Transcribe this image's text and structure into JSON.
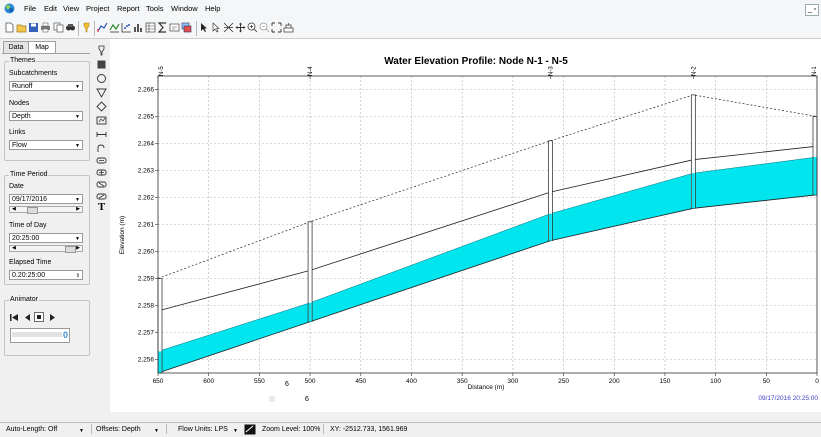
{
  "menubar": {
    "items": [
      "File",
      "Edit",
      "View",
      "Project",
      "Report",
      "Tools",
      "Window",
      "Help"
    ],
    "restore_glyph": "_ ▫"
  },
  "toolbar": {
    "icons": [
      "new-file-icon",
      "open-folder-icon",
      "save-icon",
      "print-icon",
      "copy-icon",
      "find-icon",
      "query-icon",
      "profile-plot-icon",
      "time-series-icon",
      "scatter-icon",
      "histogram-icon",
      "table-icon",
      "statistics-icon",
      "options-icon",
      "stack-icon",
      "select-icon",
      "vertex-icon",
      "full-extent-icon",
      "pan-icon",
      "zoom-in-icon",
      "zoom-out-icon",
      "full-view-icon",
      "legend-icon"
    ]
  },
  "left_panel": {
    "tabs": [
      "Data",
      "Map"
    ],
    "themes": {
      "title": "Themes",
      "subcatchments_label": "Subcatchments",
      "subcatchments_value": "Runoff",
      "nodes_label": "Nodes",
      "nodes_value": "Depth",
      "links_label": "Links",
      "links_value": "Flow"
    },
    "time_period": {
      "title": "Time Period",
      "date_label": "Date",
      "date_value": "09/17/2016",
      "time_label": "Time of Day",
      "time_value": "20:25:00",
      "elapsed_label": "Elapsed Time",
      "elapsed_value": "0.20:25:00"
    },
    "animator": {
      "title": "Animator",
      "speed_value": "0"
    }
  },
  "tools": [
    "pointer-tool-icon",
    "rain-gage-icon",
    "subcatchment-icon",
    "junction-icon",
    "outfall-icon",
    "divider-icon",
    "storage-icon",
    "conduit-icon",
    "pump-icon",
    "orifice-icon",
    "weir-icon",
    "outlet-icon",
    "label-tool-icon"
  ],
  "colors": {
    "title": "#1f3faa",
    "water": "#00e5ee",
    "grid": "#b5b5b5",
    "timestamp": "#4040c8"
  },
  "overlay_text": {
    "six_a": "6",
    "six_b": "6"
  },
  "chart_data": {
    "type": "area",
    "title": "Water Elevation Profile:  Node N-1 - N-5",
    "xlabel": "Distance (m)",
    "ylabel": "Elevation (m)",
    "xlim": [
      650,
      0
    ],
    "ylim": [
      2.2555,
      2.2665
    ],
    "x_ticks": [
      "650",
      "600",
      "550",
      "500",
      "450",
      "400",
      "350",
      "300",
      "250",
      "200",
      "150",
      "100",
      "50",
      "0"
    ],
    "x_tick_values": [
      650,
      600,
      550,
      500,
      450,
      400,
      350,
      300,
      250,
      200,
      150,
      100,
      50,
      0
    ],
    "y_ticks": [
      "2.256",
      "2.257",
      "2.258",
      "2.259",
      "2.260",
      "2.261",
      "2.262",
      "2.263",
      "2.264",
      "2.265",
      "2.266"
    ],
    "y_tick_values": [
      2.256,
      2.257,
      2.258,
      2.259,
      2.26,
      2.261,
      2.262,
      2.263,
      2.264,
      2.265,
      2.266
    ],
    "grid": true,
    "nodes": [
      {
        "name": "N-5",
        "x": 650,
        "invert": 2.2555,
        "top": 2.259
      },
      {
        "name": "N-4",
        "x": 500,
        "invert": 2.2574,
        "top": 2.2611
      },
      {
        "name": "N-3",
        "x": 263,
        "invert": 2.2604,
        "top": 2.2641
      },
      {
        "name": "N-2",
        "x": 122,
        "invert": 2.2616,
        "top": 2.2658
      },
      {
        "name": "N-1",
        "x": 0,
        "invert": 2.2621,
        "top": 2.265
      }
    ],
    "ground_line": {
      "x": [
        650,
        500,
        263,
        122,
        0
      ],
      "y": [
        2.259,
        2.2611,
        2.2641,
        2.2658,
        2.265
      ]
    },
    "crown_line": {
      "x": [
        650,
        500,
        263,
        122,
        0
      ],
      "y": [
        2.2578,
        2.2593,
        2.2622,
        2.2634,
        2.2639
      ]
    },
    "invert_line": {
      "x": [
        650,
        500,
        263,
        122,
        0
      ],
      "y": [
        2.2555,
        2.2574,
        2.2604,
        2.2616,
        2.2621
      ]
    },
    "water_surface": {
      "x": [
        650,
        500,
        263,
        122,
        0
      ],
      "y": [
        2.2563,
        2.2581,
        2.2614,
        2.2629,
        2.2635
      ]
    },
    "timestamp": "09/17/2016 20:25:00"
  },
  "statusbar": {
    "auto_length": "Auto-Length: Off",
    "offsets": "Offsets: Depth",
    "flow_units": "Flow Units: LPS",
    "zoom": "Zoom Level: 100%",
    "xy": "XY: -2512.733, 1561.969"
  }
}
